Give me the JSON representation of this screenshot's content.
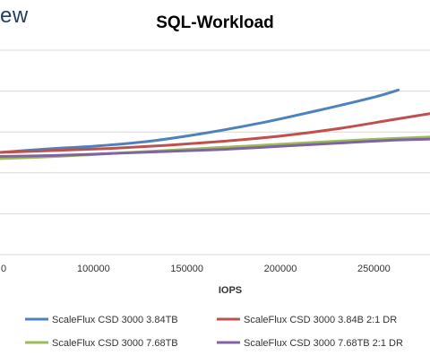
{
  "brand": {
    "partial_text": "ew"
  },
  "chart_data": {
    "type": "line",
    "title": "SQL-Workload",
    "xlabel": "IOPS",
    "ylabel": "",
    "xlim": [
      50000,
      280000
    ],
    "ylim": [
      0,
      1
    ],
    "x_ticks": [
      100000,
      150000,
      200000,
      250000
    ],
    "x_tick_labels": [
      "100000",
      "150000",
      "200000",
      "250000"
    ],
    "visible_x_tick_fragment": "0",
    "gridlines": [
      0.0,
      0.2,
      0.4,
      0.6,
      0.8,
      1.0
    ],
    "grid": true,
    "legend": "bottom",
    "series": [
      {
        "name": "ScaleFlux CSD 3000 3.84TB",
        "color": "#4f81bd",
        "x": [
          50000,
          80000,
          100000,
          130000,
          160000,
          190000,
          220000,
          250000,
          263000
        ],
        "y": [
          0.5,
          0.52,
          0.53,
          0.555,
          0.595,
          0.645,
          0.705,
          0.77,
          0.805
        ]
      },
      {
        "name": "ScaleFlux CSD 3000 3.84B 2:1 DR",
        "color": "#c0504d",
        "x": [
          50000,
          80000,
          110000,
          140000,
          170000,
          200000,
          230000,
          260000,
          280000
        ],
        "y": [
          0.5,
          0.51,
          0.52,
          0.535,
          0.555,
          0.58,
          0.615,
          0.66,
          0.69
        ]
      },
      {
        "name": "ScaleFlux CSD 3000 7.68TB",
        "color": "#9bbb59",
        "x": [
          50000,
          80000,
          110000,
          140000,
          170000,
          200000,
          230000,
          260000,
          280000
        ],
        "y": [
          0.47,
          0.48,
          0.495,
          0.51,
          0.525,
          0.54,
          0.555,
          0.568,
          0.575
        ]
      },
      {
        "name": "ScaleFlux CSD 3000 7.68TB 2:1 DR",
        "color": "#8064a2",
        "x": [
          50000,
          80000,
          110000,
          140000,
          170000,
          200000,
          230000,
          260000,
          280000
        ],
        "y": [
          0.48,
          0.485,
          0.495,
          0.505,
          0.515,
          0.53,
          0.545,
          0.56,
          0.565
        ]
      }
    ]
  }
}
